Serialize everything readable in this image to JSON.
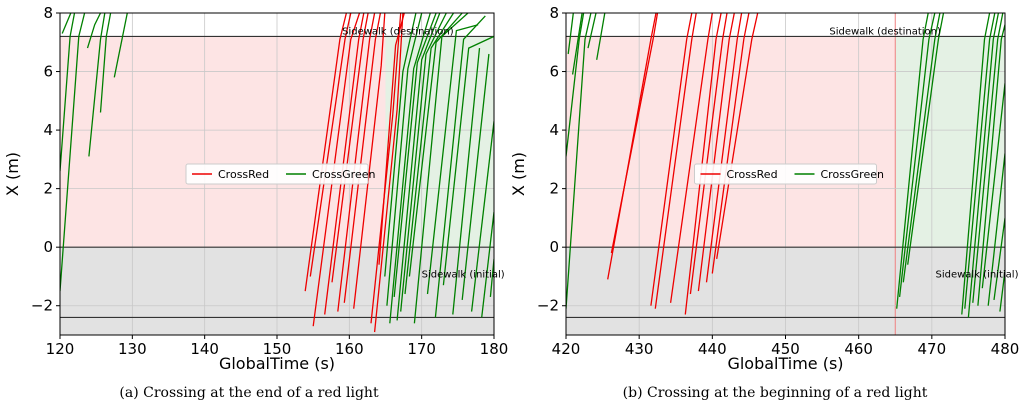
{
  "colors": {
    "red": "#ee0000",
    "green": "#008000",
    "red_phase_fill": "#fde4e4",
    "green_phase_fill": "#e4f1e4",
    "sidewalk_fill": "#e2e2e2",
    "grid": "#c8c8c8"
  },
  "captions": [
    "(a) Crossing at the end of a red light",
    "(b) Crossing at the beginning of a red light"
  ],
  "chart_data": [
    {
      "type": "line",
      "xlabel": "GlobalTime (s)",
      "ylabel": "X (m)",
      "xlim": [
        120,
        180
      ],
      "ylim": [
        -3,
        8
      ],
      "xticks": [
        120,
        130,
        140,
        150,
        160,
        170,
        180
      ],
      "yticks": [
        -2,
        0,
        2,
        4,
        6,
        8
      ],
      "grid": true,
      "legend": {
        "placement": "center",
        "entries": [
          "CrossRed",
          "CrossGreen"
        ]
      },
      "regions": {
        "destination_sidewalk_edge": 7.2,
        "initial_sidewalk_edge": 0,
        "lower_sidewalk_line": -2.4,
        "red_phase": [
          120,
          165
        ],
        "green_phase": [
          165,
          180
        ]
      },
      "annotations": [
        {
          "text": "Sidewalk (destination)",
          "x": 159,
          "y": 7.4
        },
        {
          "text": "Sidewalk (initial)",
          "x": 170,
          "y": -0.9
        }
      ],
      "series": [
        {
          "name": "CrossRed",
          "color": "red",
          "lines": [
            [
              [
                153.9,
                -1.5
              ],
              [
                158.7,
                7.1
              ],
              [
                159.6,
                8
              ]
            ],
            [
              [
                154.6,
                -1.0
              ],
              [
                159.4,
                7.1
              ],
              [
                160.2,
                8
              ]
            ],
            [
              [
                155.0,
                -2.7
              ],
              [
                160.2,
                7.1
              ],
              [
                161.4,
                8
              ]
            ],
            [
              [
                156.6,
                -2.3
              ],
              [
                161.3,
                7.1
              ],
              [
                162.0,
                8
              ]
            ],
            [
              [
                157.6,
                -1.2
              ],
              [
                161.9,
                7.1
              ],
              [
                162.6,
                8
              ]
            ],
            [
              [
                158.4,
                -2.2
              ],
              [
                162.8,
                7.1
              ],
              [
                163.5,
                8
              ]
            ],
            [
              [
                159.3,
                -1.9
              ],
              [
                163.6,
                7.1
              ],
              [
                164.3,
                8
              ]
            ],
            [
              [
                160.6,
                -2.1
              ],
              [
                164.4,
                6.2
              ],
              [
                164.9,
                8
              ]
            ],
            [
              [
                163.0,
                -2.6
              ],
              [
                166.0,
                4.5
              ],
              [
                167.1,
                8
              ]
            ],
            [
              [
                163.5,
                -2.9
              ],
              [
                166.6,
                4.7
              ],
              [
                167.4,
                8
              ]
            ],
            [
              [
                164.1,
                -0.6
              ],
              [
                166.4,
                6.9
              ],
              [
                167.6,
                8
              ]
            ]
          ]
        },
        {
          "name": "CrossGreen",
          "color": "green",
          "lines": [
            [
              [
                120.0,
                -1.5
              ],
              [
                122.6,
                7.2
              ],
              [
                123.4,
                8
              ]
            ],
            [
              [
                120.0,
                2.6
              ],
              [
                121.4,
                7.2
              ],
              [
                122.0,
                8
              ]
            ],
            [
              [
                120.3,
                7.3
              ],
              [
                121.5,
                8
              ]
            ],
            [
              [
                123.8,
                6.8
              ],
              [
                124.8,
                7.6
              ],
              [
                125.6,
                8
              ]
            ],
            [
              [
                124.0,
                3.1
              ],
              [
                125.6,
                7.1
              ],
              [
                126.2,
                8
              ]
            ],
            [
              [
                125.6,
                4.6
              ],
              [
                126.4,
                7.2
              ],
              [
                127.0,
                8
              ]
            ],
            [
              [
                127.5,
                5.8
              ],
              [
                129.3,
                8
              ]
            ],
            [
              [
                164.9,
                -1.0
              ],
              [
                167.4,
                6.0
              ],
              [
                169.2,
                8
              ]
            ],
            [
              [
                165.2,
                -2.0
              ],
              [
                168.1,
                6.1
              ],
              [
                170.0,
                8
              ]
            ],
            [
              [
                165.6,
                -2.6
              ],
              [
                168.9,
                6.1
              ],
              [
                171.2,
                8
              ]
            ],
            [
              [
                166.2,
                -1.7
              ],
              [
                169.4,
                6.3
              ],
              [
                172.0,
                8
              ]
            ],
            [
              [
                166.6,
                -2.5
              ],
              [
                170.0,
                6.4
              ],
              [
                172.5,
                8
              ]
            ],
            [
              [
                167.1,
                -2.2
              ],
              [
                170.6,
                6.6
              ],
              [
                173.4,
                8
              ]
            ],
            [
              [
                167.7,
                -1.6
              ],
              [
                171.3,
                6.8
              ],
              [
                174.4,
                8
              ]
            ],
            [
              [
                168.3,
                -1.0
              ],
              [
                172.0,
                7.0
              ],
              [
                175.6,
                8
              ]
            ],
            [
              [
                169.0,
                -2.6
              ],
              [
                172.8,
                7.2
              ],
              [
                176.4,
                8
              ]
            ],
            [
              [
                170.8,
                -1.6
              ],
              [
                174.8,
                7.4
              ],
              [
                177.8,
                7.6
              ]
            ],
            [
              [
                171.9,
                -2.4
              ],
              [
                175.8,
                7.1
              ],
              [
                178.8,
                7.9
              ]
            ],
            [
              [
                173.0,
                -1.3
              ],
              [
                176.5,
                6.8
              ],
              [
                180.0,
                7.2
              ]
            ],
            [
              [
                174.3,
                -2.3
              ],
              [
                178.0,
                6.8
              ]
            ],
            [
              [
                175.6,
                -1.8
              ],
              [
                179.3,
                6.6
              ]
            ],
            [
              [
                176.9,
                -2.2
              ],
              [
                180.0,
                4.3
              ]
            ],
            [
              [
                178.3,
                -2.4
              ],
              [
                180.0,
                1.2
              ]
            ],
            [
              [
                179.5,
                -1.7
              ],
              [
                180.0,
                -0.4
              ]
            ]
          ]
        }
      ]
    },
    {
      "type": "line",
      "xlabel": "GlobalTime (s)",
      "ylabel": "X (m)",
      "xlim": [
        420,
        480
      ],
      "ylim": [
        -3,
        8
      ],
      "xticks": [
        420,
        430,
        440,
        450,
        460,
        470,
        480
      ],
      "yticks": [
        -2,
        0,
        2,
        4,
        6,
        8
      ],
      "grid": true,
      "legend": {
        "placement": "center",
        "entries": [
          "CrossRed",
          "CrossGreen"
        ]
      },
      "regions": {
        "destination_sidewalk_edge": 7.2,
        "initial_sidewalk_edge": 0,
        "lower_sidewalk_line": -2.4,
        "red_phase": [
          420,
          465
        ],
        "green_phase": [
          465,
          480
        ]
      },
      "annotations": [
        {
          "text": "Sidewalk (destination)",
          "x": 456,
          "y": 7.4
        },
        {
          "text": "Sidewalk (initial)",
          "x": 470.5,
          "y": -0.9
        }
      ],
      "series": [
        {
          "name": "CrossRed",
          "color": "red",
          "lines": [
            [
              [
                425.7,
                -1.1
              ],
              [
                431.6,
                7.1
              ],
              [
                432.3,
                8
              ]
            ],
            [
              [
                426.2,
                -0.2
              ],
              [
                431.9,
                7.1
              ],
              [
                432.5,
                8
              ]
            ],
            [
              [
                431.6,
                -2.0
              ],
              [
                436.5,
                7.1
              ],
              [
                437.2,
                8
              ]
            ],
            [
              [
                432.2,
                -2.1
              ],
              [
                437.2,
                7.1
              ],
              [
                437.8,
                8
              ]
            ],
            [
              [
                434.3,
                -1.9
              ],
              [
                439.4,
                7.1
              ],
              [
                440.0,
                8
              ]
            ],
            [
              [
                436.3,
                -2.3
              ],
              [
                440.5,
                7.1
              ],
              [
                441.2,
                8
              ]
            ],
            [
              [
                437.0,
                -1.6
              ],
              [
                441.4,
                7.1
              ],
              [
                442.0,
                8
              ]
            ],
            [
              [
                438.1,
                -1.5
              ],
              [
                442.3,
                7.1
              ],
              [
                443.0,
                8
              ]
            ],
            [
              [
                439.2,
                -1.2
              ],
              [
                443.4,
                7.1
              ],
              [
                444.0,
                8
              ]
            ],
            [
              [
                440.0,
                -0.9
              ],
              [
                444.3,
                7.1
              ],
              [
                445.0,
                8
              ]
            ],
            [
              [
                440.6,
                -0.4
              ],
              [
                445.4,
                7.1
              ],
              [
                446.2,
                8
              ]
            ]
          ]
        },
        {
          "name": "CrossGreen",
          "color": "green",
          "lines": [
            [
              [
                420.0,
                3.1
              ],
              [
                421.8,
                7.1
              ],
              [
                422.4,
                8
              ]
            ],
            [
              [
                420.0,
                -2.1
              ],
              [
                422.6,
                7.1
              ],
              [
                423.4,
                8
              ]
            ],
            [
              [
                420.3,
                6.6
              ],
              [
                421.0,
                8
              ]
            ],
            [
              [
                420.9,
                5.9
              ],
              [
                422.2,
                8
              ]
            ],
            [
              [
                423.0,
                6.8
              ],
              [
                424.1,
                8
              ]
            ],
            [
              [
                424.2,
                6.4
              ],
              [
                425.3,
                8
              ]
            ],
            [
              [
                465.2,
                -2.1
              ],
              [
                468.8,
                7.1
              ],
              [
                469.5,
                8
              ]
            ],
            [
              [
                465.6,
                -1.7
              ],
              [
                469.6,
                7.1
              ],
              [
                470.4,
                8
              ]
            ],
            [
              [
                466.1,
                -1.2
              ],
              [
                470.4,
                7.1
              ],
              [
                471.1,
                8
              ]
            ],
            [
              [
                466.7,
                -0.6
              ],
              [
                470.9,
                7.1
              ],
              [
                471.6,
                8
              ]
            ],
            [
              [
                474.1,
                -2.3
              ],
              [
                477.2,
                7.1
              ],
              [
                477.9,
                8
              ]
            ],
            [
              [
                474.5,
                -2.1
              ],
              [
                477.9,
                7.1
              ],
              [
                478.6,
                8
              ]
            ],
            [
              [
                475.0,
                -2.4
              ],
              [
                478.4,
                7.1
              ],
              [
                479.1,
                8
              ]
            ],
            [
              [
                475.6,
                -1.9
              ],
              [
                479.0,
                7.1
              ],
              [
                479.7,
                8
              ]
            ],
            [
              [
                476.3,
                -2.0
              ],
              [
                479.5,
                7.1
              ],
              [
                480.0,
                7.6
              ]
            ],
            [
              [
                476.9,
                -1.4
              ],
              [
                480.0,
                5.6
              ]
            ],
            [
              [
                477.7,
                -2.0
              ],
              [
                480.0,
                3.2
              ]
            ],
            [
              [
                478.5,
                -1.8
              ],
              [
                480.0,
                1.0
              ]
            ],
            [
              [
                479.3,
                -2.2
              ],
              [
                480.0,
                -0.8
              ]
            ]
          ]
        }
      ]
    }
  ]
}
